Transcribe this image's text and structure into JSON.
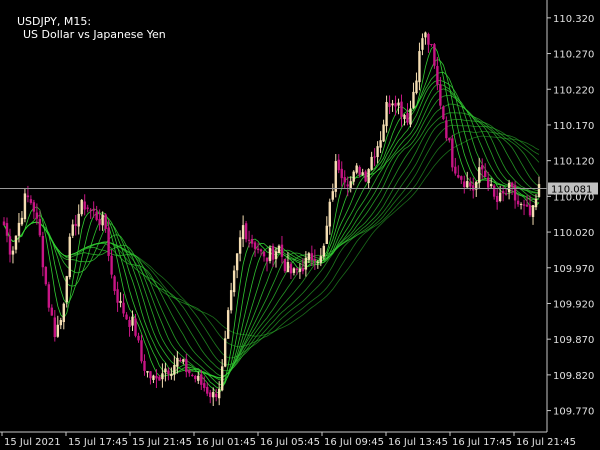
{
  "header": {
    "symbol_timeframe": "USDJPY, M15:",
    "description": "US Dollar vs Japanese Yen"
  },
  "current_price": "110.081",
  "colors": {
    "background": "#000000",
    "axis": "#c8c8c8",
    "bull_candle": "#f5deb3",
    "bear_candle": "#c71585",
    "ribbon": "#32cd32",
    "price_line": "#9a9a9a",
    "price_tag": "#c0c0c0"
  },
  "chart_data": {
    "type": "candlestick",
    "y_ticks": [
      "110.320",
      "110.270",
      "110.220",
      "110.170",
      "110.120",
      "110.070",
      "110.020",
      "109.970",
      "109.920",
      "109.870",
      "109.820",
      "109.770"
    ],
    "x_ticks": [
      "15 Jul 2021",
      "15 Jul 17:45",
      "15 Jul 21:45",
      "16 Jul 01:45",
      "16 Jul 05:45",
      "16 Jul 09:45",
      "16 Jul 13:45",
      "16 Jul 17:45",
      "16 Jul 21:45"
    ],
    "ylim": [
      109.74,
      110.345
    ],
    "close_path": [
      110.03,
      109.99,
      110.03,
      110.07,
      110.06,
      110.01,
      109.93,
      109.88,
      109.9,
      110.0,
      110.04,
      110.06,
      110.05,
      110.04,
      110.03,
      109.95,
      109.92,
      109.9,
      109.89,
      109.84,
      109.82,
      109.81,
      109.83,
      109.83,
      109.84,
      109.83,
      109.82,
      109.81,
      109.8,
      109.79,
      109.81,
      109.9,
      109.97,
      110.03,
      110.01,
      110.0,
      109.98,
      109.99,
      110.0,
      109.97,
      109.96,
      109.97,
      109.98,
      109.99,
      109.98,
      110.05,
      110.12,
      110.1,
      110.09,
      110.11,
      110.1,
      110.13,
      110.15,
      110.2,
      110.21,
      110.19,
      110.18,
      110.24,
      110.3,
      110.28,
      110.22,
      110.17,
      110.12,
      110.1,
      110.09,
      110.08,
      110.11,
      110.09,
      110.06,
      110.07,
      110.08,
      110.06,
      110.05,
      110.04,
      110.08
    ]
  }
}
